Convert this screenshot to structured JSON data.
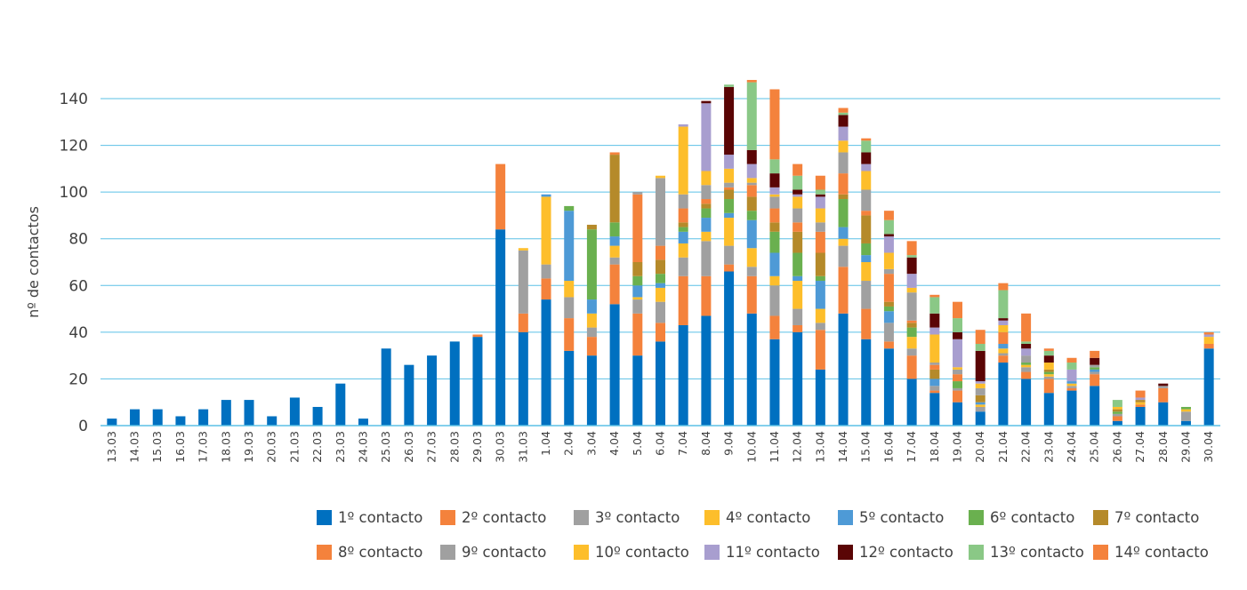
{
  "chart_data": {
    "type": "bar",
    "stacked": true,
    "title": "",
    "xlabel": "",
    "ylabel": "nº de contactos",
    "ylim": [
      0,
      140
    ],
    "yticks": [
      0,
      20,
      40,
      60,
      80,
      100,
      120,
      140
    ],
    "grid": true,
    "legend_position": "bottom-right",
    "categories": [
      "13.03",
      "14.03",
      "15.03",
      "16.03",
      "17.03",
      "18.03",
      "19.03",
      "20.03",
      "21.03",
      "22.03",
      "23.03",
      "24.03",
      "25.03",
      "26.03",
      "27.03",
      "28.03",
      "29.03",
      "30.03",
      "31.03",
      "1.04",
      "2.04",
      "3.04",
      "4.04",
      "5.04",
      "6.04",
      "7.04",
      "8.04",
      "9.04",
      "10.04",
      "11.04",
      "12.04",
      "13.04",
      "14.04",
      "15.04",
      "16.04",
      "17.04",
      "18.04",
      "19.04",
      "20.04",
      "21.04",
      "22.04",
      "23.04",
      "24.04",
      "25.04",
      "26.04",
      "27.04",
      "28.04",
      "29.04",
      "30.04"
    ],
    "series": [
      {
        "name": "1º contacto",
        "color": "#0070C0",
        "values": [
          3,
          7,
          7,
          4,
          7,
          11,
          11,
          4,
          12,
          8,
          18,
          3,
          33,
          26,
          30,
          36,
          38,
          84,
          40,
          54,
          32,
          30,
          52,
          30,
          36,
          43,
          47,
          66,
          48,
          37,
          40,
          24,
          48,
          37,
          33,
          20,
          14,
          10,
          6,
          27,
          20,
          14,
          15,
          17,
          2,
          8,
          10,
          2,
          33
        ]
      },
      {
        "name": "2º contacto",
        "color": "#F4823C",
        "values": [
          0,
          0,
          0,
          0,
          0,
          0,
          0,
          0,
          0,
          0,
          0,
          0,
          0,
          0,
          0,
          0,
          1,
          28,
          8,
          9,
          14,
          8,
          17,
          18,
          8,
          21,
          17,
          3,
          16,
          10,
          3,
          17,
          20,
          13,
          3,
          10,
          1,
          5,
          0,
          3,
          3,
          6,
          1,
          5,
          2,
          1,
          0,
          0,
          2
        ]
      },
      {
        "name": "3º contacto",
        "color": "#A0A0A0",
        "values": [
          0,
          0,
          0,
          0,
          0,
          0,
          0,
          0,
          0,
          0,
          0,
          0,
          0,
          0,
          0,
          0,
          0,
          0,
          27,
          6,
          9,
          4,
          3,
          6,
          9,
          8,
          15,
          8,
          4,
          13,
          7,
          3,
          9,
          12,
          8,
          3,
          2,
          1,
          2,
          1,
          2,
          1,
          1,
          1,
          1,
          0,
          0,
          4,
          0
        ]
      },
      {
        "name": "4º contacto",
        "color": "#FDBE2B",
        "values": [
          0,
          0,
          0,
          0,
          0,
          0,
          0,
          0,
          0,
          0,
          0,
          0,
          0,
          0,
          0,
          0,
          0,
          0,
          1,
          29,
          7,
          6,
          5,
          1,
          6,
          6,
          4,
          12,
          8,
          4,
          12,
          6,
          3,
          8,
          0,
          5,
          0,
          0,
          1,
          2,
          1,
          1,
          1,
          0,
          0,
          1,
          0,
          1,
          3
        ]
      },
      {
        "name": "5º contacto",
        "color": "#4E9AD6",
        "values": [
          0,
          0,
          0,
          0,
          0,
          0,
          0,
          0,
          0,
          0,
          0,
          0,
          0,
          0,
          0,
          0,
          0,
          0,
          0,
          1,
          30,
          6,
          4,
          5,
          2,
          5,
          6,
          2,
          12,
          10,
          2,
          12,
          5,
          3,
          5,
          0,
          3,
          0,
          1,
          2,
          0,
          0,
          1,
          1,
          0,
          0,
          0,
          0,
          0
        ]
      },
      {
        "name": "6º contacto",
        "color": "#6AB04F",
        "values": [
          0,
          0,
          0,
          0,
          0,
          0,
          0,
          0,
          0,
          0,
          0,
          0,
          0,
          0,
          0,
          0,
          0,
          0,
          0,
          0,
          2,
          30,
          6,
          4,
          4,
          2,
          4,
          6,
          4,
          9,
          10,
          2,
          12,
          5,
          2,
          4,
          0,
          3,
          0,
          0,
          1,
          1,
          0,
          1,
          1,
          0,
          0,
          1,
          0
        ]
      },
      {
        "name": "7º contacto",
        "color": "#B58A2A",
        "values": [
          0,
          0,
          0,
          0,
          0,
          0,
          0,
          0,
          0,
          0,
          0,
          0,
          0,
          0,
          0,
          0,
          0,
          0,
          0,
          0,
          0,
          2,
          29,
          6,
          6,
          2,
          2,
          4,
          6,
          4,
          9,
          10,
          2,
          12,
          2,
          2,
          4,
          0,
          3,
          0,
          0,
          1,
          0,
          0,
          1,
          1,
          0,
          0,
          0
        ]
      },
      {
        "name": "8º contacto",
        "color": "#F4823C",
        "values": [
          0,
          0,
          0,
          0,
          0,
          0,
          0,
          0,
          0,
          0,
          0,
          0,
          0,
          0,
          0,
          0,
          0,
          0,
          0,
          0,
          0,
          0,
          1,
          29,
          6,
          6,
          2,
          1,
          5,
          6,
          4,
          9,
          9,
          2,
          12,
          1,
          2,
          3,
          0,
          5,
          0,
          0,
          0,
          0,
          0,
          0,
          6,
          0,
          0
        ]
      },
      {
        "name": "9º contacto",
        "color": "#A0A0A0",
        "values": [
          0,
          0,
          0,
          0,
          0,
          0,
          0,
          0,
          0,
          0,
          0,
          0,
          0,
          0,
          0,
          0,
          0,
          0,
          0,
          0,
          0,
          0,
          0,
          1,
          29,
          6,
          6,
          2,
          1,
          5,
          6,
          4,
          9,
          9,
          2,
          12,
          1,
          2,
          3,
          0,
          3,
          0,
          0,
          1,
          0,
          0,
          1,
          0,
          0
        ]
      },
      {
        "name": "10º contacto",
        "color": "#FDBE2B",
        "values": [
          0,
          0,
          0,
          0,
          0,
          0,
          0,
          0,
          0,
          0,
          0,
          0,
          0,
          0,
          0,
          0,
          0,
          0,
          0,
          0,
          0,
          0,
          0,
          0,
          1,
          29,
          6,
          6,
          2,
          1,
          5,
          6,
          5,
          8,
          7,
          2,
          12,
          1,
          2,
          3,
          0,
          3,
          0,
          0,
          1,
          0,
          0,
          0,
          0
        ]
      },
      {
        "name": "11º contacto",
        "color": "#A89ECF",
        "values": [
          0,
          0,
          0,
          0,
          0,
          0,
          0,
          0,
          0,
          0,
          0,
          0,
          0,
          0,
          0,
          0,
          0,
          0,
          0,
          0,
          0,
          0,
          0,
          0,
          0,
          1,
          29,
          6,
          6,
          3,
          1,
          5,
          6,
          3,
          7,
          6,
          3,
          12,
          1,
          2,
          3,
          0,
          5,
          0,
          0,
          1,
          0,
          0,
          1
        ]
      },
      {
        "name": "12º contacto",
        "color": "#5A0505",
        "values": [
          0,
          0,
          0,
          0,
          0,
          0,
          0,
          0,
          0,
          0,
          0,
          0,
          0,
          0,
          0,
          0,
          0,
          0,
          0,
          0,
          0,
          0,
          0,
          0,
          0,
          0,
          1,
          29,
          6,
          6,
          2,
          1,
          5,
          5,
          1,
          7,
          6,
          3,
          13,
          1,
          2,
          3,
          0,
          3,
          0,
          0,
          1,
          0,
          0
        ]
      },
      {
        "name": "13º contacto",
        "color": "#8AC886",
        "values": [
          0,
          0,
          0,
          0,
          0,
          0,
          0,
          0,
          0,
          0,
          0,
          0,
          0,
          0,
          0,
          0,
          0,
          0,
          0,
          0,
          0,
          0,
          0,
          0,
          0,
          0,
          0,
          1,
          29,
          6,
          6,
          2,
          1,
          5,
          6,
          1,
          7,
          6,
          3,
          12,
          1,
          2,
          3,
          0,
          3,
          0,
          0,
          0,
          0
        ]
      },
      {
        "name": "14º contacto",
        "color": "#F4823C",
        "values": [
          0,
          0,
          0,
          0,
          0,
          0,
          0,
          0,
          0,
          0,
          0,
          0,
          0,
          0,
          0,
          0,
          0,
          0,
          0,
          0,
          0,
          0,
          0,
          0,
          0,
          0,
          0,
          0,
          1,
          30,
          5,
          6,
          2,
          1,
          4,
          6,
          1,
          7,
          6,
          3,
          12,
          1,
          2,
          3,
          0,
          3,
          0,
          0,
          1
        ]
      }
    ]
  }
}
